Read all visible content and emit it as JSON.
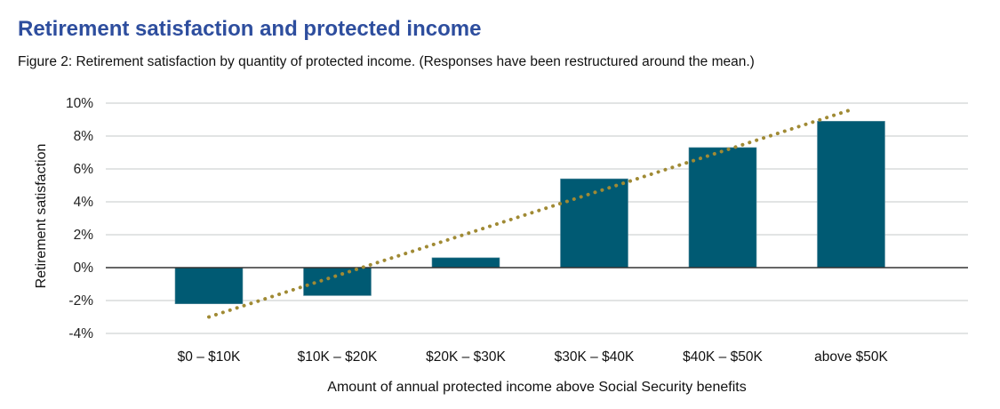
{
  "header": {
    "title": "Retirement satisfaction and protected income",
    "subtitle": "Figure 2: Retirement satisfaction by quantity of protected income. (Responses have been restructured around the mean.)"
  },
  "colors": {
    "title": "#2e4e9e",
    "bar": "#005a73",
    "trend": "#a08a34",
    "grid": "#d9dcdc",
    "zero_line": "#333333"
  },
  "chart_data": {
    "type": "bar",
    "title": "Retirement satisfaction and protected income",
    "subtitle": "Figure 2: Retirement satisfaction by quantity of protected income. (Responses have been restructured around the mean.)",
    "xlabel": "Amount of annual protected income above Social Security benefits",
    "ylabel": "Retirement satisfaction",
    "categories": [
      "$0 – $10K",
      "$10K – $20K",
      "$20K – $30K",
      "$30K – $40K",
      "$40K – $50K",
      "above $50K"
    ],
    "values": [
      -2.2,
      -1.7,
      0.6,
      5.4,
      7.3,
      8.9
    ],
    "value_unit": "%",
    "ylim": [
      -4,
      10
    ],
    "yticks": [
      10,
      8,
      6,
      4,
      2,
      0,
      -2,
      -4
    ],
    "ytick_labels": [
      "10%",
      "8%",
      "6%",
      "4%",
      "2%",
      "0%",
      "-2%",
      "-4%"
    ],
    "grid": true,
    "legend": "none",
    "trendline": {
      "type": "linear",
      "style": "dotted",
      "start": {
        "category_index": 0,
        "value": -3.0
      },
      "end": {
        "category_index": 5,
        "value": 9.6
      }
    }
  }
}
